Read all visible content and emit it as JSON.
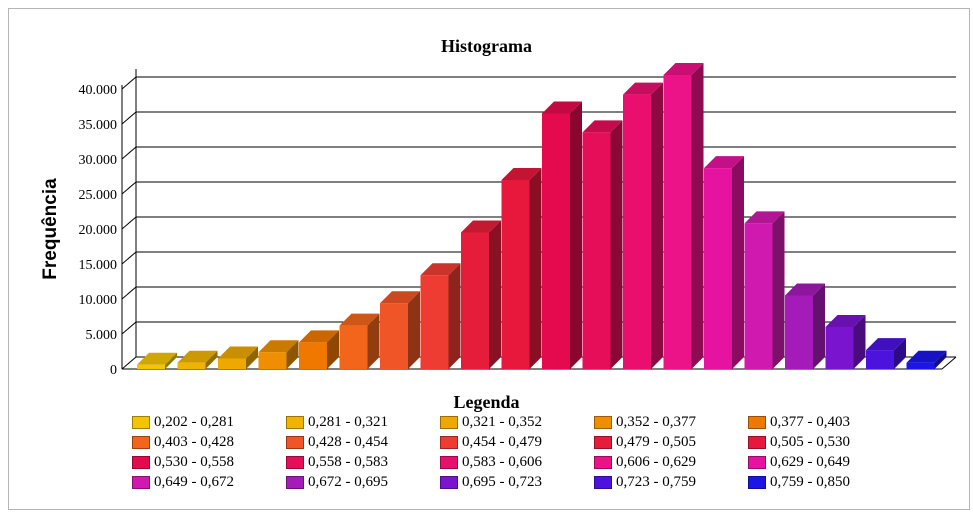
{
  "chart_data": {
    "type": "bar",
    "title": "Histograma",
    "ylabel": "Frequência",
    "xlabel": "",
    "legend_title": "Legenda",
    "ylim": [
      0,
      40000
    ],
    "yticks": [
      "0",
      "5.000",
      "10.000",
      "15.000",
      "20.000",
      "25.000",
      "30.000",
      "35.000",
      "40.000"
    ],
    "grid": true,
    "legend_position": "bottom",
    "categories": [
      "0,202 - 0,281",
      "0,281 - 0,321",
      "0,321 - 0,352",
      "0,352 - 0,377",
      "0,377 - 0,403",
      "0,403 - 0,428",
      "0,428 - 0,454",
      "0,454 - 0,479",
      "0,479 - 0,505",
      "0,505 - 0,530",
      "0,530 - 0,558",
      "0,558 - 0,583",
      "0,583 - 0,606",
      "0,606 - 0,629",
      "0,629 - 0,649",
      "0,649 - 0,672",
      "0,672 - 0,695",
      "0,695 - 0,723",
      "0,723 - 0,759",
      "0,759 - 0,850"
    ],
    "values": [
      600,
      900,
      1500,
      2400,
      3800,
      6200,
      9400,
      13400,
      19500,
      27000,
      36500,
      33800,
      39200,
      42000,
      28700,
      20800,
      10500,
      6000,
      2700,
      900
    ],
    "colors": [
      "#f2c500",
      "#f0b400",
      "#eea800",
      "#ef8f00",
      "#f07800",
      "#f2651a",
      "#ef5527",
      "#ef3c33",
      "#e61d3a",
      "#e8173c",
      "#e50a4d",
      "#e60e59",
      "#ea0f6e",
      "#ec1287",
      "#e613a0",
      "#d01aaf",
      "#a51bb9",
      "#7a14cf",
      "#4c13df",
      "#1b15e6"
    ]
  }
}
